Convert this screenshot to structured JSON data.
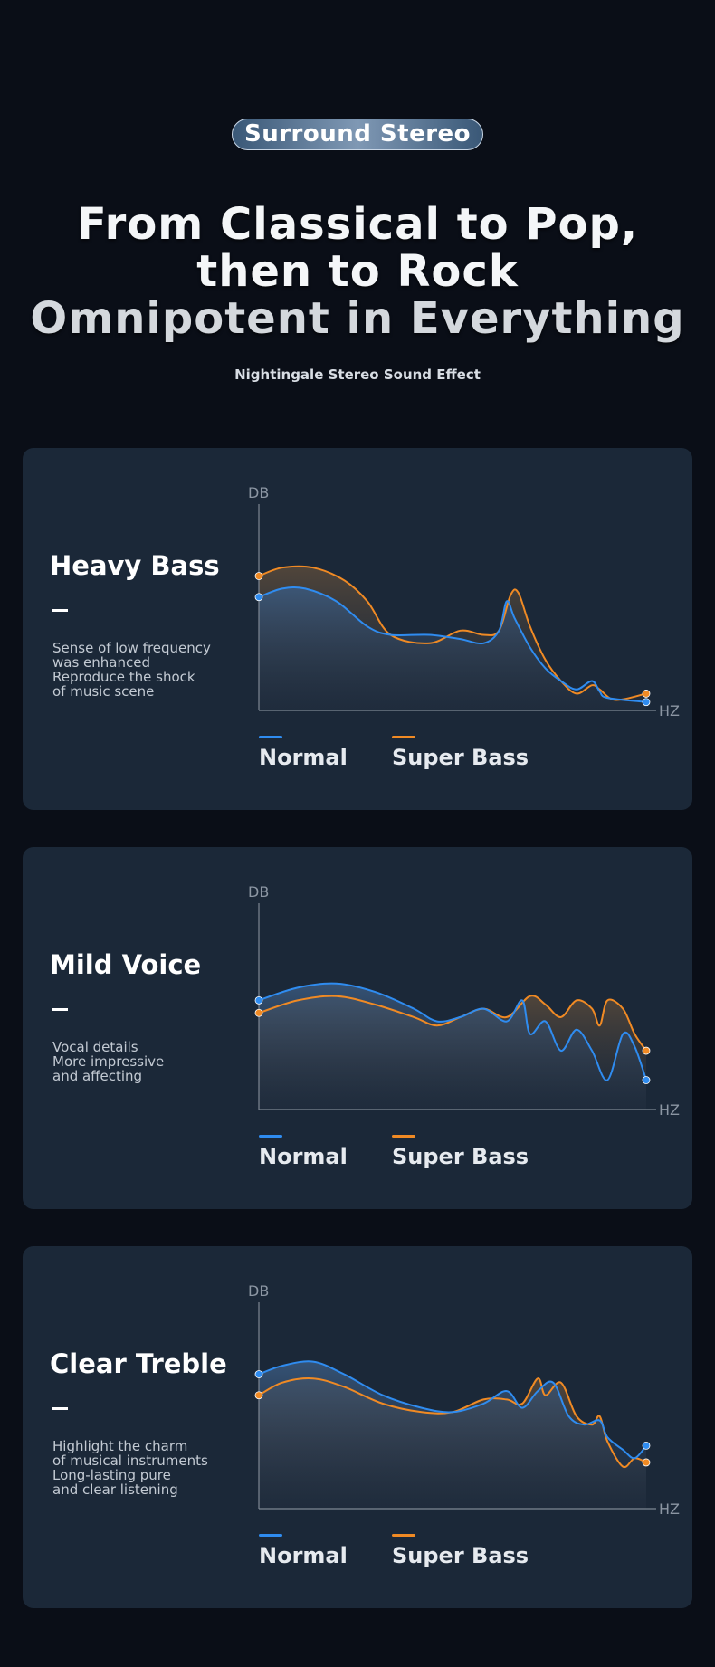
{
  "badge": "Surround Stereo",
  "headline": [
    "From Classical to Pop,",
    "then to Rock",
    "Omnipotent in Everything"
  ],
  "subtitle": "Nightingale Stereo Sound Effect",
  "colors": {
    "normal": "#2f8cf0",
    "super_bass": "#f08a24",
    "card": "#1b2838",
    "background": "#0a0e17"
  },
  "chart_data": [
    {
      "type": "line",
      "title": "Heavy Bass",
      "description": [
        "Sense of low frequency",
        "was enhanced",
        "Reproduce the shock",
        "of music scene"
      ],
      "ylabel": "DB",
      "xlabel": "HZ",
      "xlim": [
        0,
        100
      ],
      "ylim": [
        0,
        100
      ],
      "series": [
        {
          "name": "Normal",
          "color": "#2f8cf0",
          "points": [
            [
              0,
              54
            ],
            [
              6,
              58
            ],
            [
              12,
              58
            ],
            [
              20,
              52
            ],
            [
              28,
              40
            ],
            [
              34,
              36
            ],
            [
              44,
              36
            ],
            [
              52,
              34
            ],
            [
              58,
              32
            ],
            [
              62,
              38
            ],
            [
              64,
              52
            ],
            [
              66,
              44
            ],
            [
              70,
              30
            ],
            [
              74,
              20
            ],
            [
              78,
              14
            ],
            [
              82,
              10
            ],
            [
              86,
              14
            ],
            [
              88,
              9
            ],
            [
              90,
              6
            ],
            [
              100,
              4
            ]
          ]
        },
        {
          "name": "Super Bass",
          "color": "#f08a24",
          "points": [
            [
              0,
              64
            ],
            [
              6,
              68
            ],
            [
              14,
              68
            ],
            [
              22,
              62
            ],
            [
              28,
              52
            ],
            [
              34,
              36
            ],
            [
              44,
              32
            ],
            [
              52,
              38
            ],
            [
              58,
              36
            ],
            [
              62,
              38
            ],
            [
              65,
              55
            ],
            [
              67,
              56
            ],
            [
              70,
              40
            ],
            [
              74,
              24
            ],
            [
              78,
              14
            ],
            [
              82,
              8
            ],
            [
              86,
              12
            ],
            [
              88,
              10
            ],
            [
              92,
              5
            ],
            [
              100,
              8
            ]
          ]
        }
      ]
    },
    {
      "type": "line",
      "title": "Mild Voice",
      "description": [
        "Vocal details",
        "More impressive",
        "and affecting"
      ],
      "ylabel": "DB",
      "xlabel": "HZ",
      "xlim": [
        0,
        100
      ],
      "ylim": [
        0,
        100
      ],
      "series": [
        {
          "name": "Normal",
          "color": "#2f8cf0",
          "points": [
            [
              0,
              52
            ],
            [
              10,
              58
            ],
            [
              20,
              60
            ],
            [
              30,
              56
            ],
            [
              40,
              48
            ],
            [
              46,
              42
            ],
            [
              52,
              44
            ],
            [
              58,
              48
            ],
            [
              64,
              42
            ],
            [
              68,
              52
            ],
            [
              70,
              36
            ],
            [
              74,
              42
            ],
            [
              78,
              28
            ],
            [
              82,
              38
            ],
            [
              86,
              28
            ],
            [
              90,
              14
            ],
            [
              94,
              36
            ],
            [
              97,
              30
            ],
            [
              100,
              14
            ]
          ]
        },
        {
          "name": "Super Bass",
          "color": "#f08a24",
          "points": [
            [
              0,
              46
            ],
            [
              10,
              52
            ],
            [
              20,
              54
            ],
            [
              30,
              50
            ],
            [
              40,
              44
            ],
            [
              46,
              40
            ],
            [
              52,
              44
            ],
            [
              58,
              48
            ],
            [
              64,
              44
            ],
            [
              70,
              54
            ],
            [
              74,
              50
            ],
            [
              78,
              44
            ],
            [
              82,
              52
            ],
            [
              86,
              48
            ],
            [
              88,
              40
            ],
            [
              90,
              52
            ],
            [
              94,
              48
            ],
            [
              97,
              36
            ],
            [
              100,
              28
            ]
          ]
        }
      ]
    },
    {
      "type": "line",
      "title": "Clear Treble",
      "description": [
        "Highlight the charm",
        "of musical instruments",
        "Long-lasting pure",
        "and clear listening"
      ],
      "ylabel": "DB",
      "xlabel": "HZ",
      "xlim": [
        0,
        100
      ],
      "ylim": [
        0,
        100
      ],
      "series": [
        {
          "name": "Normal",
          "color": "#2f8cf0",
          "points": [
            [
              0,
              64
            ],
            [
              6,
              68
            ],
            [
              14,
              70
            ],
            [
              22,
              64
            ],
            [
              32,
              54
            ],
            [
              42,
              48
            ],
            [
              50,
              46
            ],
            [
              58,
              50
            ],
            [
              64,
              56
            ],
            [
              68,
              48
            ],
            [
              72,
              56
            ],
            [
              76,
              60
            ],
            [
              80,
              44
            ],
            [
              84,
              40
            ],
            [
              88,
              42
            ],
            [
              90,
              34
            ],
            [
              94,
              28
            ],
            [
              97,
              24
            ],
            [
              100,
              30
            ]
          ]
        },
        {
          "name": "Super Bass",
          "color": "#f08a24",
          "points": [
            [
              0,
              54
            ],
            [
              6,
              60
            ],
            [
              14,
              62
            ],
            [
              22,
              58
            ],
            [
              32,
              50
            ],
            [
              42,
              46
            ],
            [
              50,
              46
            ],
            [
              58,
              52
            ],
            [
              64,
              52
            ],
            [
              68,
              50
            ],
            [
              72,
              62
            ],
            [
              74,
              54
            ],
            [
              78,
              60
            ],
            [
              82,
              44
            ],
            [
              86,
              40
            ],
            [
              88,
              44
            ],
            [
              90,
              32
            ],
            [
              94,
              20
            ],
            [
              97,
              24
            ],
            [
              100,
              22
            ]
          ]
        }
      ]
    }
  ]
}
